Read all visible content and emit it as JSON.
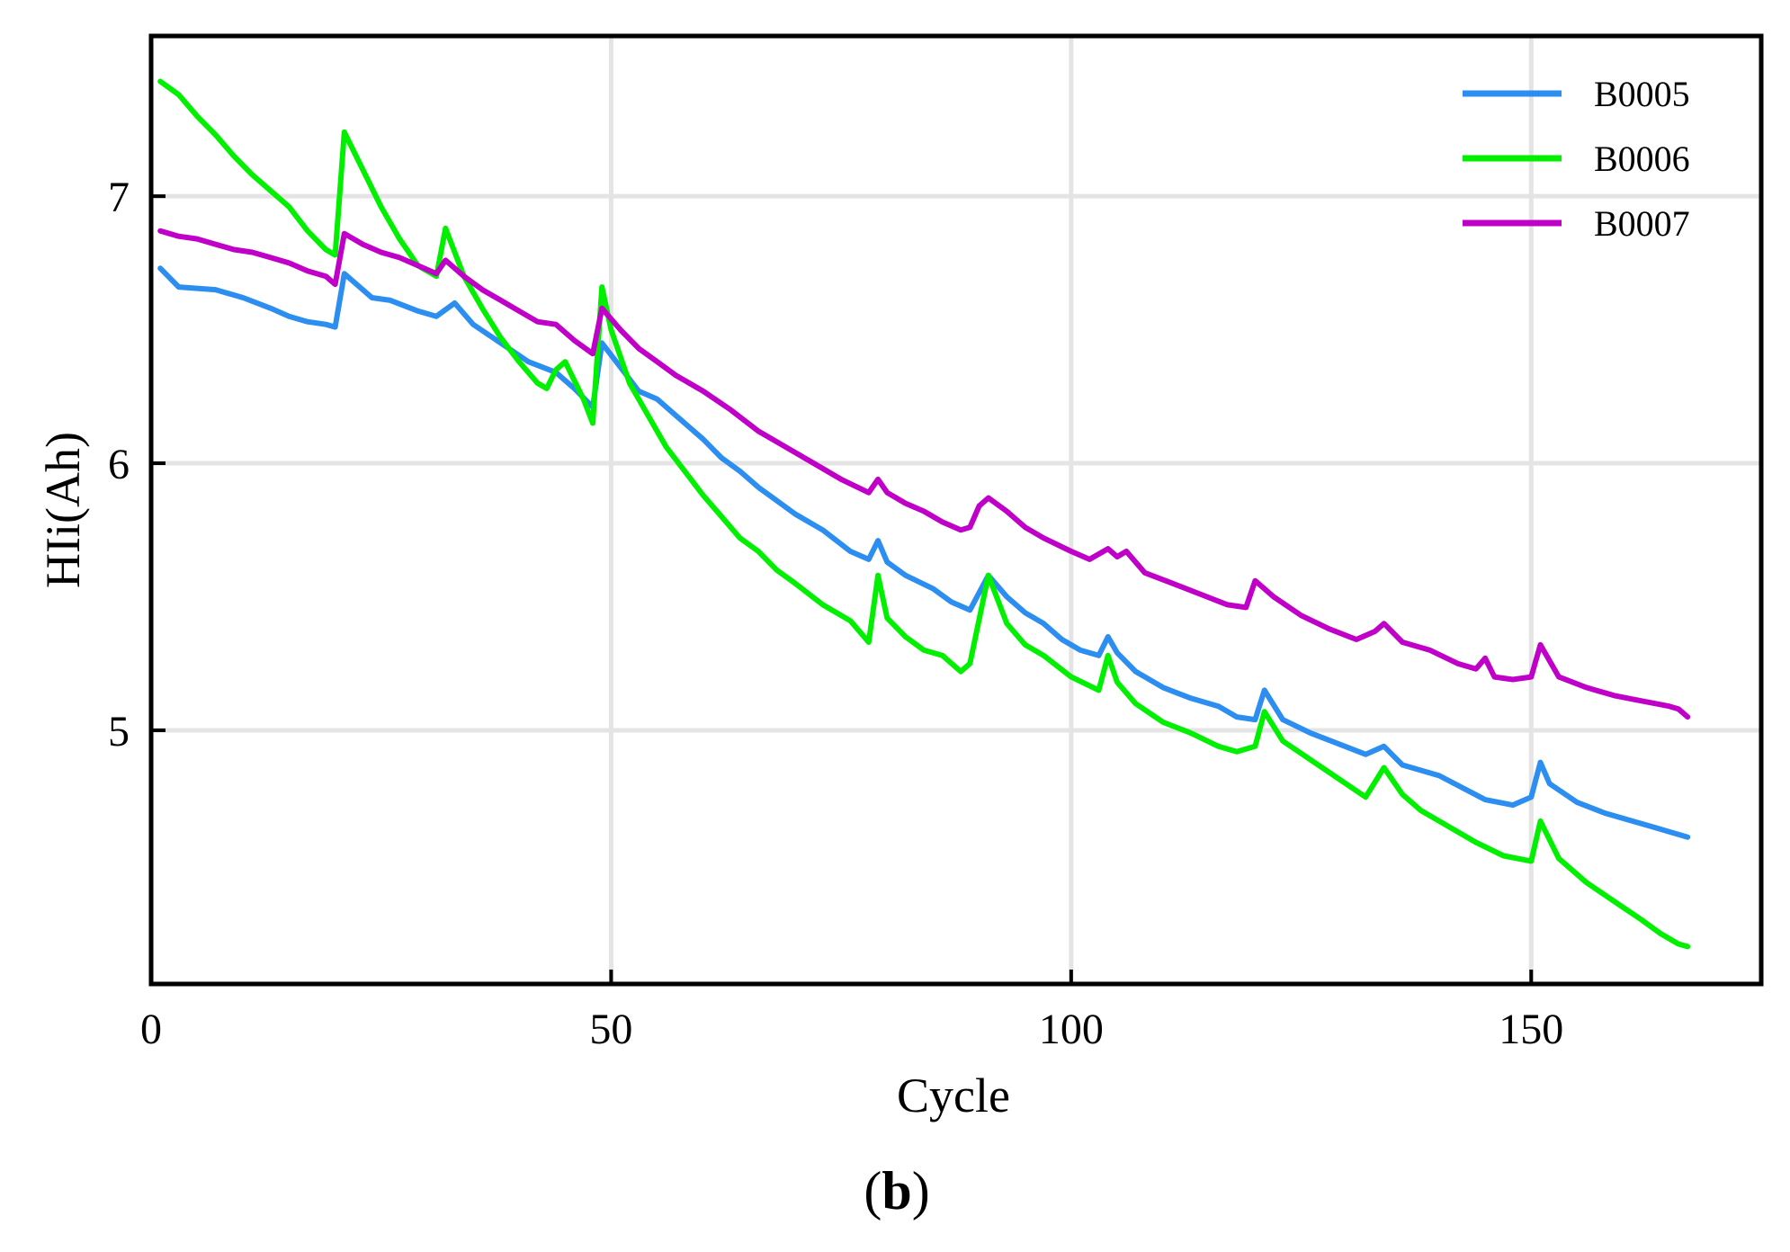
{
  "chart_data": {
    "type": "line",
    "title": "",
    "xlabel": "Cycle",
    "ylabel": "HIi(Ah)",
    "xlim": [
      0,
      175
    ],
    "ylim": [
      4.05,
      7.6
    ],
    "xticks": [
      0,
      50,
      100,
      150
    ],
    "yticks": [
      5,
      6,
      7
    ],
    "grid": true,
    "legend_position": "top-right",
    "subfigure_label": {
      "open": "(",
      "letter": "b",
      "close": ")"
    },
    "series": [
      {
        "name": "B0005",
        "color": "#2b8ef0",
        "x": [
          1,
          3,
          7,
          10,
          13,
          15,
          17,
          19,
          20,
          21,
          22,
          24,
          26,
          29,
          31,
          33,
          35,
          38,
          41,
          44,
          46,
          48,
          49,
          51,
          53,
          55,
          57,
          60,
          62,
          64,
          66,
          68,
          70,
          73,
          76,
          78,
          79,
          80,
          82,
          85,
          87,
          89,
          91,
          93,
          95,
          97,
          99,
          101,
          103,
          104,
          105,
          107,
          110,
          113,
          116,
          118,
          120,
          121,
          123,
          126,
          129,
          132,
          134,
          136,
          140,
          145,
          148,
          150,
          151,
          152,
          155,
          158,
          161,
          163,
          165,
          167
        ],
        "values": [
          6.73,
          6.66,
          6.65,
          6.62,
          6.58,
          6.55,
          6.53,
          6.52,
          6.51,
          6.71,
          6.68,
          6.62,
          6.61,
          6.57,
          6.55,
          6.6,
          6.52,
          6.45,
          6.38,
          6.34,
          6.28,
          6.21,
          6.45,
          6.36,
          6.27,
          6.24,
          6.18,
          6.09,
          6.02,
          5.97,
          5.91,
          5.86,
          5.81,
          5.75,
          5.67,
          5.64,
          5.71,
          5.63,
          5.58,
          5.53,
          5.48,
          5.45,
          5.58,
          5.5,
          5.44,
          5.4,
          5.34,
          5.3,
          5.28,
          5.35,
          5.29,
          5.22,
          5.16,
          5.12,
          5.09,
          5.05,
          5.04,
          5.15,
          5.04,
          4.99,
          4.95,
          4.91,
          4.94,
          4.87,
          4.83,
          4.74,
          4.72,
          4.75,
          4.88,
          4.8,
          4.73,
          4.69,
          4.66,
          4.64,
          4.62,
          4.6
        ]
      },
      {
        "name": "B0006",
        "color": "#00f000",
        "x": [
          1,
          3,
          5,
          7,
          9,
          11,
          13,
          15,
          17,
          19,
          20,
          21,
          23,
          25,
          27,
          29,
          31,
          32,
          34,
          36,
          38,
          40,
          42,
          43,
          44,
          45,
          47,
          48,
          49,
          50,
          52,
          54,
          56,
          58,
          60,
          62,
          64,
          66,
          68,
          70,
          73,
          76,
          78,
          79,
          80,
          82,
          84,
          86,
          88,
          89,
          91,
          93,
          95,
          97,
          100,
          103,
          104,
          105,
          107,
          110,
          113,
          116,
          118,
          120,
          121,
          123,
          126,
          129,
          132,
          134,
          136,
          138,
          141,
          144,
          147,
          150,
          151,
          153,
          156,
          159,
          162,
          164,
          166,
          167
        ],
        "values": [
          7.43,
          7.38,
          7.3,
          7.23,
          7.15,
          7.08,
          7.02,
          6.96,
          6.87,
          6.8,
          6.78,
          7.24,
          7.1,
          6.96,
          6.84,
          6.74,
          6.7,
          6.88,
          6.7,
          6.58,
          6.47,
          6.38,
          6.3,
          6.28,
          6.35,
          6.38,
          6.24,
          6.15,
          6.66,
          6.5,
          6.3,
          6.18,
          6.06,
          5.97,
          5.88,
          5.8,
          5.72,
          5.67,
          5.6,
          5.55,
          5.47,
          5.41,
          5.33,
          5.58,
          5.42,
          5.35,
          5.3,
          5.28,
          5.22,
          5.25,
          5.58,
          5.4,
          5.32,
          5.28,
          5.2,
          5.15,
          5.28,
          5.18,
          5.1,
          5.03,
          4.99,
          4.94,
          4.92,
          4.94,
          5.07,
          4.96,
          4.89,
          4.82,
          4.75,
          4.86,
          4.76,
          4.7,
          4.64,
          4.58,
          4.53,
          4.51,
          4.66,
          4.52,
          4.43,
          4.36,
          4.29,
          4.24,
          4.2,
          4.19
        ]
      },
      {
        "name": "B0007",
        "color": "#c000c8",
        "x": [
          1,
          3,
          5,
          7,
          9,
          11,
          13,
          15,
          17,
          19,
          20,
          21,
          23,
          25,
          27,
          29,
          31,
          32,
          34,
          36,
          38,
          40,
          42,
          44,
          46,
          48,
          49,
          51,
          53,
          55,
          57,
          60,
          63,
          66,
          69,
          72,
          75,
          78,
          79,
          80,
          82,
          84,
          86,
          88,
          89,
          90,
          91,
          93,
          95,
          97,
          100,
          102,
          104,
          105,
          106,
          108,
          111,
          114,
          117,
          119,
          120,
          122,
          125,
          128,
          131,
          133,
          134,
          136,
          139,
          142,
          144,
          145,
          146,
          148,
          150,
          151,
          153,
          156,
          159,
          162,
          165,
          166,
          167
        ],
        "values": [
          6.87,
          6.85,
          6.84,
          6.82,
          6.8,
          6.79,
          6.77,
          6.75,
          6.72,
          6.7,
          6.67,
          6.86,
          6.82,
          6.79,
          6.77,
          6.74,
          6.71,
          6.76,
          6.7,
          6.65,
          6.61,
          6.57,
          6.53,
          6.52,
          6.46,
          6.41,
          6.58,
          6.5,
          6.43,
          6.38,
          6.33,
          6.27,
          6.2,
          6.12,
          6.06,
          6.0,
          5.94,
          5.89,
          5.94,
          5.89,
          5.85,
          5.82,
          5.78,
          5.75,
          5.76,
          5.84,
          5.87,
          5.82,
          5.76,
          5.72,
          5.67,
          5.64,
          5.68,
          5.65,
          5.67,
          5.59,
          5.55,
          5.51,
          5.47,
          5.46,
          5.56,
          5.5,
          5.43,
          5.38,
          5.34,
          5.37,
          5.4,
          5.33,
          5.3,
          5.25,
          5.23,
          5.27,
          5.2,
          5.19,
          5.2,
          5.32,
          5.2,
          5.16,
          5.13,
          5.11,
          5.09,
          5.08,
          5.05
        ]
      }
    ]
  }
}
